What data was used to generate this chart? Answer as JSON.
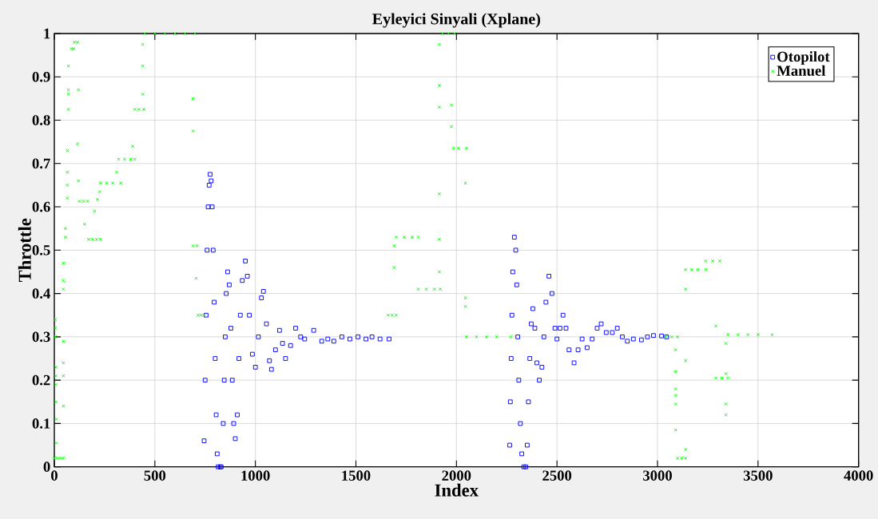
{
  "chart_data": {
    "type": "scatter",
    "title": "Eyleyici Sinyali (Xplane)",
    "xlabel": "Index",
    "ylabel": "Throttle",
    "xlim": [
      0,
      4000
    ],
    "xticks": [
      0,
      500,
      1000,
      1500,
      2000,
      2500,
      3000,
      3500,
      4000
    ],
    "ylim": [
      0,
      1
    ],
    "yticks": [
      0,
      0.1,
      0.2,
      0.3,
      0.4,
      0.5,
      0.6,
      0.7,
      0.8,
      0.9,
      1
    ],
    "grid": true,
    "legend": "top right",
    "series": [
      {
        "name": "Otopilot",
        "color": "#0000ff",
        "marker": "square",
        "x": [
          745,
          750,
          755,
          760,
          765,
          770,
          775,
          780,
          785,
          790,
          795,
          800,
          805,
          810,
          815,
          825,
          830,
          840,
          845,
          850,
          855,
          862,
          870,
          878,
          885,
          892,
          900,
          910,
          918,
          925,
          935,
          950,
          960,
          970,
          985,
          1000,
          1015,
          1030,
          1040,
          1055,
          1070,
          1080,
          1100,
          1120,
          1135,
          1150,
          1175,
          1200,
          1225,
          1245,
          1290,
          1330,
          1360,
          1390,
          1430,
          1470,
          1510,
          1550,
          1580,
          1620,
          1665,
          2265,
          2268,
          2272,
          2276,
          2280,
          2288,
          2295,
          2300,
          2305,
          2310,
          2318,
          2325,
          2335,
          2345,
          2352,
          2358,
          2365,
          2372,
          2380,
          2390,
          2400,
          2412,
          2425,
          2435,
          2445,
          2460,
          2475,
          2490,
          2500,
          2515,
          2530,
          2545,
          2560,
          2585,
          2605,
          2625,
          2650,
          2675,
          2700,
          2720,
          2745,
          2775,
          2800,
          2825,
          2850,
          2880,
          2920,
          2950,
          2980,
          3020,
          3045
        ],
        "values": [
          0.06,
          0.2,
          0.35,
          0.5,
          0.6,
          0.65,
          0.675,
          0.66,
          0.6,
          0.5,
          0.38,
          0.25,
          0.12,
          0.03,
          0.0,
          0.0,
          0.0,
          0.1,
          0.2,
          0.3,
          0.4,
          0.45,
          0.42,
          0.32,
          0.2,
          0.1,
          0.065,
          0.12,
          0.25,
          0.35,
          0.43,
          0.475,
          0.44,
          0.35,
          0.26,
          0.23,
          0.3,
          0.39,
          0.405,
          0.33,
          0.245,
          0.225,
          0.27,
          0.315,
          0.285,
          0.25,
          0.28,
          0.32,
          0.3,
          0.295,
          0.315,
          0.29,
          0.295,
          0.29,
          0.3,
          0.295,
          0.3,
          0.295,
          0.3,
          0.295,
          0.295,
          0.05,
          0.15,
          0.25,
          0.35,
          0.45,
          0.53,
          0.5,
          0.42,
          0.3,
          0.2,
          0.1,
          0.03,
          0.0,
          0.0,
          0.05,
          0.15,
          0.25,
          0.33,
          0.365,
          0.32,
          0.24,
          0.2,
          0.23,
          0.3,
          0.38,
          0.44,
          0.4,
          0.32,
          0.295,
          0.32,
          0.35,
          0.32,
          0.27,
          0.24,
          0.27,
          0.295,
          0.275,
          0.295,
          0.32,
          0.33,
          0.31,
          0.31,
          0.32,
          0.3,
          0.29,
          0.295,
          0.293,
          0.3,
          0.303,
          0.302,
          0.3
        ]
      },
      {
        "name": "Manuel",
        "color": "#00ff00",
        "marker": "cross",
        "x": [
          0,
          15,
          30,
          45,
          5,
          5,
          5,
          8,
          8,
          8,
          8,
          10,
          10,
          45,
          45,
          45,
          45,
          45,
          45,
          45,
          55,
          55,
          65,
          65,
          65,
          65,
          70,
          70,
          70,
          70,
          85,
          100,
          115,
          95,
          115,
          120,
          120,
          125,
          145,
          165,
          150,
          170,
          190,
          210,
          230,
          200,
          215,
          225,
          230,
          260,
          290,
          330,
          310,
          320,
          350,
          380,
          400,
          390,
          400,
          420,
          445,
          440,
          440,
          440,
          450,
          500,
          550,
          600,
          650,
          700,
          690,
          690,
          690,
          710,
          705,
          715,
          730,
          745,
          1660,
          1680,
          1700,
          1690,
          1690,
          1700,
          1740,
          1780,
          1810,
          1810,
          1850,
          1890,
          1920,
          1915,
          1915,
          1915,
          1915,
          1915,
          1915,
          1930,
          1960,
          1990,
          1975,
          1975,
          1985,
          2010,
          2050,
          2045,
          2045,
          2045,
          2050,
          2100,
          2150,
          2200,
          2270,
          3040,
          3070,
          3100,
          3090,
          3090,
          3090,
          3090,
          3090,
          3090,
          3100,
          3120,
          3140,
          3140,
          3140,
          3140,
          3140,
          3170,
          3200,
          3240,
          3240,
          3275,
          3310,
          3290,
          3290,
          3320,
          3350,
          3340,
          3340,
          3340,
          3340,
          3350,
          3400,
          3450,
          3500,
          3570
        ],
        "values": [
          0.02,
          0.02,
          0.02,
          0.02,
          0.34,
          0.32,
          0.3,
          0.23,
          0.21,
          0.19,
          0.15,
          0.11,
          0.055,
          0.41,
          0.43,
          0.47,
          0.29,
          0.24,
          0.21,
          0.14,
          0.53,
          0.55,
          0.62,
          0.65,
          0.68,
          0.73,
          0.825,
          0.86,
          0.87,
          0.925,
          0.965,
          0.98,
          0.98,
          0.965,
          0.745,
          0.87,
          0.66,
          0.613,
          0.613,
          0.613,
          0.56,
          0.525,
          0.525,
          0.525,
          0.525,
          0.59,
          0.617,
          0.635,
          0.655,
          0.655,
          0.655,
          0.655,
          0.68,
          0.71,
          0.71,
          0.71,
          0.71,
          0.74,
          0.825,
          0.825,
          0.825,
          0.86,
          0.925,
          0.975,
          1.0,
          1.0,
          1.0,
          1.0,
          1.0,
          1.0,
          0.85,
          0.775,
          0.51,
          0.51,
          0.435,
          0.35,
          0.35,
          0.35,
          0.35,
          0.35,
          0.35,
          0.46,
          0.51,
          0.53,
          0.53,
          0.53,
          0.53,
          0.41,
          0.41,
          0.41,
          0.41,
          0.45,
          0.525,
          0.63,
          0.83,
          0.88,
          0.975,
          1.0,
          1.0,
          1.0,
          0.835,
          0.785,
          0.735,
          0.735,
          0.735,
          0.655,
          0.39,
          0.37,
          0.3,
          0.3,
          0.3,
          0.3,
          0.3,
          0.3,
          0.3,
          0.3,
          0.27,
          0.22,
          0.18,
          0.165,
          0.145,
          0.085,
          0.02,
          0.02,
          0.02,
          0.04,
          0.245,
          0.41,
          0.455,
          0.455,
          0.455,
          0.455,
          0.475,
          0.475,
          0.475,
          0.325,
          0.205,
          0.205,
          0.205,
          0.215,
          0.285,
          0.145,
          0.12,
          0.305,
          0.305,
          0.305,
          0.305,
          0.305
        ]
      }
    ]
  }
}
